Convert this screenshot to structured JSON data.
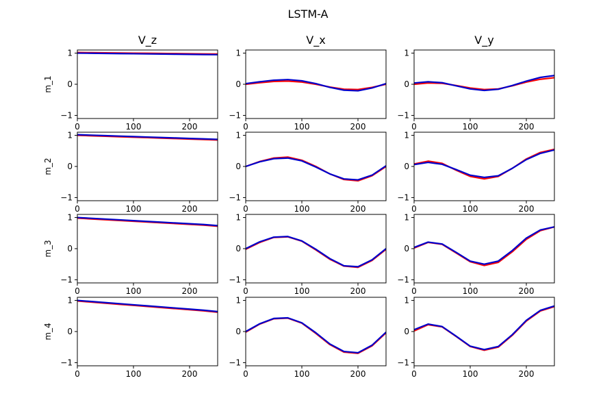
{
  "figure_title": "LSTM-A",
  "colors": {
    "series_red": "#ff0000",
    "series_blue": "#0000cc",
    "axes": "#000000",
    "background": "#ffffff"
  },
  "chart_data": {
    "type": "line",
    "title": "LSTM-A",
    "column_titles": [
      "V_z",
      "V_x",
      "V_y"
    ],
    "row_labels": [
      "m_1",
      "m_2",
      "m_3",
      "m_4"
    ],
    "xlim": [
      0,
      250
    ],
    "ylim": [
      -1.1,
      1.1
    ],
    "xticks": [
      0,
      100,
      200
    ],
    "yticks": [
      -1,
      0,
      1
    ],
    "x": [
      0,
      25,
      50,
      75,
      100,
      125,
      150,
      175,
      200,
      225,
      250
    ],
    "panels": [
      {
        "row": "m_1",
        "col": "V_z",
        "series": [
          {
            "color": "red",
            "values": [
              1.02,
              1.015,
              1.01,
              1.005,
              1.0,
              0.995,
              0.99,
              0.985,
              0.98,
              0.975,
              0.97
            ]
          },
          {
            "color": "blue",
            "values": [
              1.0,
              0.995,
              0.99,
              0.985,
              0.98,
              0.975,
              0.97,
              0.965,
              0.96,
              0.955,
              0.95
            ]
          }
        ]
      },
      {
        "row": "m_1",
        "col": "V_x",
        "series": [
          {
            "color": "red",
            "values": [
              0.0,
              0.05,
              0.09,
              0.1,
              0.07,
              0.0,
              -0.09,
              -0.16,
              -0.17,
              -0.1,
              0.0
            ]
          },
          {
            "color": "blue",
            "values": [
              0.02,
              0.08,
              0.13,
              0.15,
              0.11,
              0.02,
              -0.1,
              -0.19,
              -0.21,
              -0.12,
              0.02
            ]
          }
        ]
      },
      {
        "row": "m_1",
        "col": "V_y",
        "series": [
          {
            "color": "red",
            "values": [
              0.0,
              0.04,
              0.03,
              -0.04,
              -0.12,
              -0.17,
              -0.15,
              -0.05,
              0.07,
              0.16,
              0.21
            ]
          },
          {
            "color": "blue",
            "values": [
              0.04,
              0.08,
              0.05,
              -0.05,
              -0.15,
              -0.2,
              -0.16,
              -0.04,
              0.1,
              0.22,
              0.28
            ]
          }
        ]
      },
      {
        "row": "m_2",
        "col": "V_z",
        "series": [
          {
            "color": "red",
            "values": [
              1.0,
              0.985,
              0.97,
              0.955,
              0.94,
              0.925,
              0.91,
              0.895,
              0.88,
              0.865,
              0.85
            ]
          },
          {
            "color": "blue",
            "values": [
              1.02,
              1.005,
              0.99,
              0.975,
              0.96,
              0.945,
              0.93,
              0.915,
              0.9,
              0.885,
              0.87
            ]
          }
        ]
      },
      {
        "row": "m_2",
        "col": "V_x",
        "series": [
          {
            "color": "red",
            "values": [
              0.0,
              0.16,
              0.27,
              0.3,
              0.2,
              0.0,
              -0.24,
              -0.42,
              -0.46,
              -0.3,
              0.0
            ]
          },
          {
            "color": "blue",
            "values": [
              0.0,
              0.15,
              0.25,
              0.27,
              0.18,
              -0.02,
              -0.24,
              -0.4,
              -0.43,
              -0.28,
              0.02
            ]
          }
        ]
      },
      {
        "row": "m_2",
        "col": "V_y",
        "series": [
          {
            "color": "red",
            "values": [
              0.08,
              0.17,
              0.1,
              -0.12,
              -0.32,
              -0.4,
              -0.32,
              -0.06,
              0.24,
              0.45,
              0.55
            ]
          },
          {
            "color": "blue",
            "values": [
              0.06,
              0.13,
              0.07,
              -0.1,
              -0.28,
              -0.35,
              -0.3,
              -0.06,
              0.22,
              0.42,
              0.53
            ]
          }
        ]
      },
      {
        "row": "m_3",
        "col": "V_z",
        "series": [
          {
            "color": "red",
            "values": [
              0.98,
              0.955,
              0.93,
              0.905,
              0.88,
              0.855,
              0.83,
              0.805,
              0.78,
              0.755,
              0.72
            ]
          },
          {
            "color": "blue",
            "values": [
              1.0,
              0.975,
              0.95,
              0.925,
              0.9,
              0.875,
              0.85,
              0.825,
              0.8,
              0.775,
              0.74
            ]
          }
        ]
      },
      {
        "row": "m_3",
        "col": "V_x",
        "series": [
          {
            "color": "red",
            "values": [
              -0.02,
              0.2,
              0.36,
              0.38,
              0.24,
              -0.04,
              -0.34,
              -0.56,
              -0.6,
              -0.38,
              -0.02
            ]
          },
          {
            "color": "blue",
            "values": [
              0.0,
              0.22,
              0.37,
              0.39,
              0.25,
              -0.02,
              -0.32,
              -0.55,
              -0.58,
              -0.36,
              0.0
            ]
          }
        ]
      },
      {
        "row": "m_3",
        "col": "V_y",
        "series": [
          {
            "color": "red",
            "values": [
              0.02,
              0.2,
              0.14,
              -0.14,
              -0.42,
              -0.54,
              -0.44,
              -0.1,
              0.3,
              0.58,
              0.7
            ]
          },
          {
            "color": "blue",
            "values": [
              0.04,
              0.21,
              0.15,
              -0.12,
              -0.4,
              -0.5,
              -0.4,
              -0.06,
              0.34,
              0.6,
              0.7
            ]
          }
        ]
      },
      {
        "row": "m_4",
        "col": "V_z",
        "series": [
          {
            "color": "red",
            "values": [
              0.98,
              0.945,
              0.91,
              0.875,
              0.84,
              0.805,
              0.77,
              0.735,
              0.7,
              0.665,
              0.62
            ]
          },
          {
            "color": "blue",
            "values": [
              1.0,
              0.965,
              0.93,
              0.895,
              0.86,
              0.825,
              0.79,
              0.755,
              0.72,
              0.685,
              0.64
            ]
          }
        ]
      },
      {
        "row": "m_4",
        "col": "V_x",
        "series": [
          {
            "color": "red",
            "values": [
              -0.02,
              0.24,
              0.41,
              0.43,
              0.27,
              -0.06,
              -0.42,
              -0.66,
              -0.7,
              -0.46,
              -0.04
            ]
          },
          {
            "color": "blue",
            "values": [
              0.0,
              0.25,
              0.42,
              0.44,
              0.28,
              -0.04,
              -0.4,
              -0.64,
              -0.68,
              -0.44,
              -0.02
            ]
          }
        ]
      },
      {
        "row": "m_4",
        "col": "V_y",
        "series": [
          {
            "color": "red",
            "values": [
              0.02,
              0.22,
              0.15,
              -0.16,
              -0.48,
              -0.6,
              -0.5,
              -0.12,
              0.34,
              0.66,
              0.8
            ]
          },
          {
            "color": "blue",
            "values": [
              0.06,
              0.24,
              0.16,
              -0.15,
              -0.47,
              -0.58,
              -0.48,
              -0.1,
              0.36,
              0.68,
              0.82
            ]
          }
        ]
      }
    ]
  }
}
